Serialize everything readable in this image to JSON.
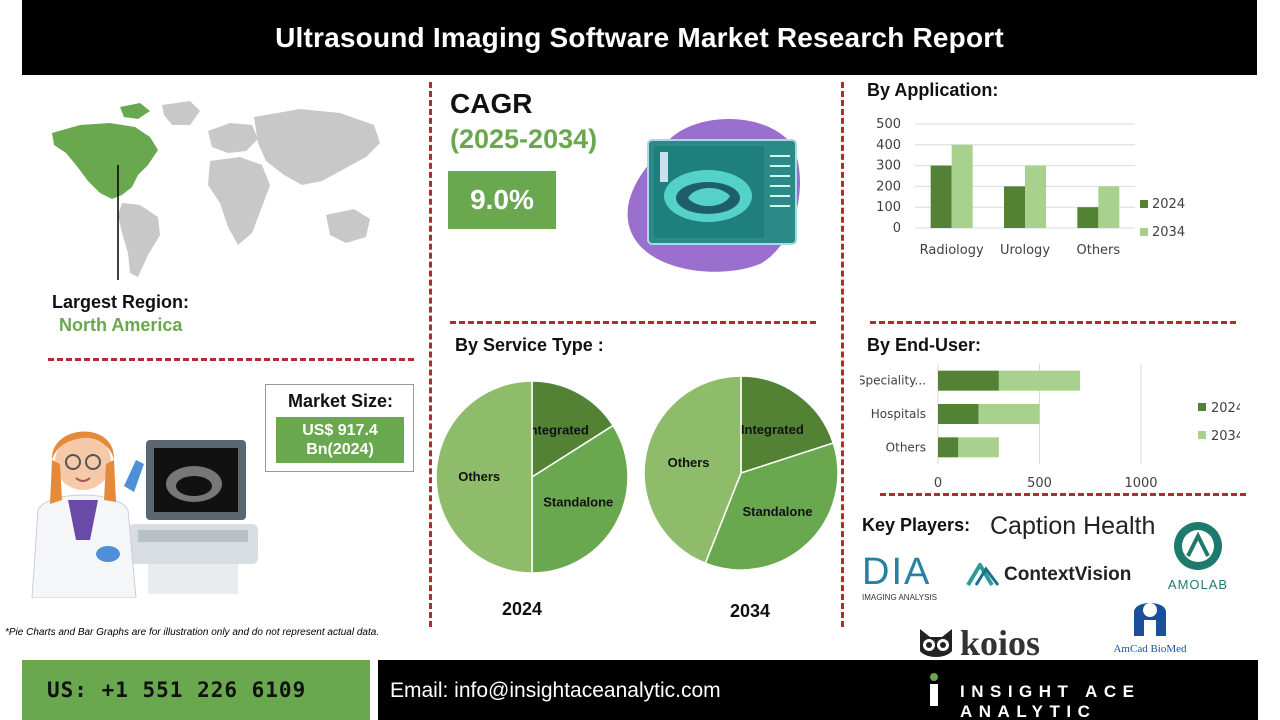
{
  "title": "Ultrasound Imaging Software Market Research Report",
  "largest_region": {
    "label": "Largest Region:",
    "value": "North America"
  },
  "cagr": {
    "label": "CAGR",
    "period": "(2025-2034)",
    "value": "9.0%"
  },
  "market_size": {
    "label": "Market Size:",
    "value_line1": "US$ 917.4",
    "value_line2": "Bn(2024)"
  },
  "sections": {
    "application": "By Application:",
    "service_type": "By Service Type :",
    "end_user": "By End-User:",
    "key_players": "Key Players:"
  },
  "key_players": [
    "Caption Health",
    "DIA",
    "IMAGING ANALYSIS",
    "ContextVision",
    "AMOLAB",
    "koios",
    "AmCad BioMed"
  ],
  "note": "*Pie Charts and Bar Graphs are for illustration only and do not represent actual data.",
  "footer": {
    "phone": "US: +1 551 226 6109",
    "email": "Email: info@insightaceanalytic.com",
    "brand": "INSIGHT ACE ANALYTIC"
  },
  "colors": {
    "dark_green": "#548235",
    "light_green": "#a9d18e",
    "mid_green": "#6aa84f",
    "pie_others": "#8fbc6b",
    "accent_red": "#b52a2a"
  },
  "chart_data": [
    {
      "type": "bar",
      "title": "By Application:",
      "categories": [
        "Radiology",
        "Urology",
        "Others"
      ],
      "series": [
        {
          "name": "2024",
          "values": [
            300,
            200,
            100
          ]
        },
        {
          "name": "2034",
          "values": [
            400,
            300,
            200
          ]
        }
      ],
      "ylim": [
        0,
        500
      ],
      "yticks": [
        "0",
        "100",
        "200",
        "300",
        "400",
        "500"
      ],
      "grid": true,
      "legend": "right"
    },
    {
      "type": "pie",
      "title": "By Service Type :",
      "caption": "2024",
      "labels": [
        "Integrated",
        "Standalone",
        "Others"
      ],
      "values": [
        16,
        34,
        50
      ]
    },
    {
      "type": "pie",
      "title": "By Service Type :",
      "caption": "2034",
      "labels": [
        "Integrated",
        "Standalone",
        "Others"
      ],
      "values": [
        20,
        36,
        44
      ]
    },
    {
      "type": "bar",
      "orientation": "horizontal",
      "stacked": true,
      "title": "By End-User:",
      "categories": [
        "Speciality...",
        "Hospitals",
        "Others"
      ],
      "series": [
        {
          "name": "2024",
          "values": [
            300,
            200,
            100
          ]
        },
        {
          "name": "2034",
          "values": [
            400,
            300,
            200
          ]
        }
      ],
      "xlim": [
        0,
        1000
      ],
      "xticks": [
        "0",
        "500",
        "1000"
      ],
      "grid": true,
      "legend": "right"
    }
  ]
}
